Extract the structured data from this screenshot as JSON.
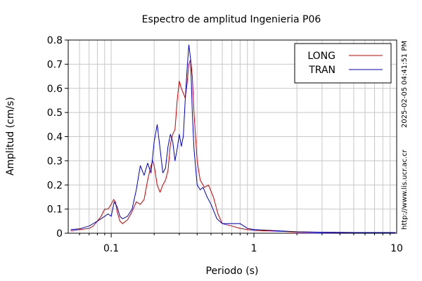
{
  "chart_data": {
    "type": "line",
    "title": "Espectro de amplitud Ingenieria P06",
    "xlabel": "Periodo (s)",
    "ylabel": "Amplitud (cm/s)",
    "xscale": "log",
    "xlim": [
      0.05,
      10
    ],
    "ylim": [
      0,
      0.8
    ],
    "x_ticks": [
      {
        "value": 0.1,
        "label": "0.1"
      },
      {
        "value": 1,
        "label": "1"
      },
      {
        "value": 10,
        "label": "10"
      }
    ],
    "y_ticks": [
      {
        "value": 0,
        "label": "0"
      },
      {
        "value": 0.1,
        "label": "0.1"
      },
      {
        "value": 0.2,
        "label": "0.2"
      },
      {
        "value": 0.3,
        "label": "0.3"
      },
      {
        "value": 0.4,
        "label": "0.4"
      },
      {
        "value": 0.5,
        "label": "0.5"
      },
      {
        "value": 0.6,
        "label": "0.6"
      },
      {
        "value": 0.7,
        "label": "0.7"
      },
      {
        "value": 0.8,
        "label": "0.8"
      }
    ],
    "grid": true,
    "legend_position": "top-right",
    "side_text": [
      "2025-02-05 04:41:51 PM",
      "http://www.lis.ucr.ac.cr"
    ],
    "series": [
      {
        "name": "LONG",
        "color": "#cc0000",
        "points": [
          [
            0.052,
            0.01
          ],
          [
            0.06,
            0.015
          ],
          [
            0.07,
            0.02
          ],
          [
            0.075,
            0.03
          ],
          [
            0.08,
            0.05
          ],
          [
            0.085,
            0.07
          ],
          [
            0.09,
            0.1
          ],
          [
            0.095,
            0.1
          ],
          [
            0.1,
            0.12
          ],
          [
            0.104,
            0.14
          ],
          [
            0.107,
            0.13
          ],
          [
            0.11,
            0.09
          ],
          [
            0.115,
            0.05
          ],
          [
            0.12,
            0.04
          ],
          [
            0.13,
            0.055
          ],
          [
            0.14,
            0.09
          ],
          [
            0.15,
            0.13
          ],
          [
            0.16,
            0.12
          ],
          [
            0.17,
            0.14
          ],
          [
            0.18,
            0.22
          ],
          [
            0.19,
            0.28
          ],
          [
            0.195,
            0.3
          ],
          [
            0.2,
            0.28
          ],
          [
            0.21,
            0.2
          ],
          [
            0.22,
            0.17
          ],
          [
            0.23,
            0.2
          ],
          [
            0.24,
            0.22
          ],
          [
            0.25,
            0.26
          ],
          [
            0.26,
            0.37
          ],
          [
            0.27,
            0.41
          ],
          [
            0.28,
            0.43
          ],
          [
            0.29,
            0.55
          ],
          [
            0.3,
            0.63
          ],
          [
            0.31,
            0.6
          ],
          [
            0.32,
            0.58
          ],
          [
            0.33,
            0.56
          ],
          [
            0.34,
            0.62
          ],
          [
            0.35,
            0.7
          ],
          [
            0.36,
            0.72
          ],
          [
            0.37,
            0.65
          ],
          [
            0.38,
            0.5
          ],
          [
            0.4,
            0.3
          ],
          [
            0.42,
            0.22
          ],
          [
            0.45,
            0.19
          ],
          [
            0.48,
            0.2
          ],
          [
            0.52,
            0.15
          ],
          [
            0.56,
            0.08
          ],
          [
            0.6,
            0.04
          ],
          [
            0.7,
            0.03
          ],
          [
            0.8,
            0.02
          ],
          [
            0.9,
            0.015
          ],
          [
            1.0,
            0.012
          ],
          [
            1.5,
            0.008
          ],
          [
            2.0,
            0.005
          ],
          [
            3.0,
            0.004
          ],
          [
            5.0,
            0.003
          ],
          [
            8.0,
            0.003
          ],
          [
            9.8,
            0.003
          ]
        ]
      },
      {
        "name": "TRAN",
        "color": "#0000cc",
        "points": [
          [
            0.052,
            0.015
          ],
          [
            0.06,
            0.018
          ],
          [
            0.07,
            0.03
          ],
          [
            0.08,
            0.05
          ],
          [
            0.09,
            0.07
          ],
          [
            0.095,
            0.08
          ],
          [
            0.1,
            0.07
          ],
          [
            0.105,
            0.13
          ],
          [
            0.11,
            0.11
          ],
          [
            0.115,
            0.07
          ],
          [
            0.12,
            0.06
          ],
          [
            0.13,
            0.07
          ],
          [
            0.14,
            0.1
          ],
          [
            0.15,
            0.18
          ],
          [
            0.16,
            0.28
          ],
          [
            0.17,
            0.24
          ],
          [
            0.18,
            0.29
          ],
          [
            0.19,
            0.25
          ],
          [
            0.2,
            0.38
          ],
          [
            0.21,
            0.45
          ],
          [
            0.22,
            0.35
          ],
          [
            0.23,
            0.25
          ],
          [
            0.24,
            0.27
          ],
          [
            0.25,
            0.36
          ],
          [
            0.26,
            0.41
          ],
          [
            0.27,
            0.38
          ],
          [
            0.28,
            0.3
          ],
          [
            0.29,
            0.35
          ],
          [
            0.3,
            0.41
          ],
          [
            0.31,
            0.36
          ],
          [
            0.32,
            0.4
          ],
          [
            0.33,
            0.55
          ],
          [
            0.34,
            0.68
          ],
          [
            0.35,
            0.78
          ],
          [
            0.36,
            0.72
          ],
          [
            0.37,
            0.5
          ],
          [
            0.38,
            0.35
          ],
          [
            0.4,
            0.2
          ],
          [
            0.42,
            0.18
          ],
          [
            0.44,
            0.19
          ],
          [
            0.47,
            0.15
          ],
          [
            0.5,
            0.12
          ],
          [
            0.55,
            0.06
          ],
          [
            0.6,
            0.04
          ],
          [
            0.7,
            0.04
          ],
          [
            0.8,
            0.04
          ],
          [
            0.9,
            0.02
          ],
          [
            1.0,
            0.015
          ],
          [
            1.5,
            0.01
          ],
          [
            2.0,
            0.006
          ],
          [
            3.0,
            0.004
          ],
          [
            5.0,
            0.003
          ],
          [
            8.0,
            0.003
          ],
          [
            9.8,
            0.003
          ]
        ]
      }
    ]
  }
}
